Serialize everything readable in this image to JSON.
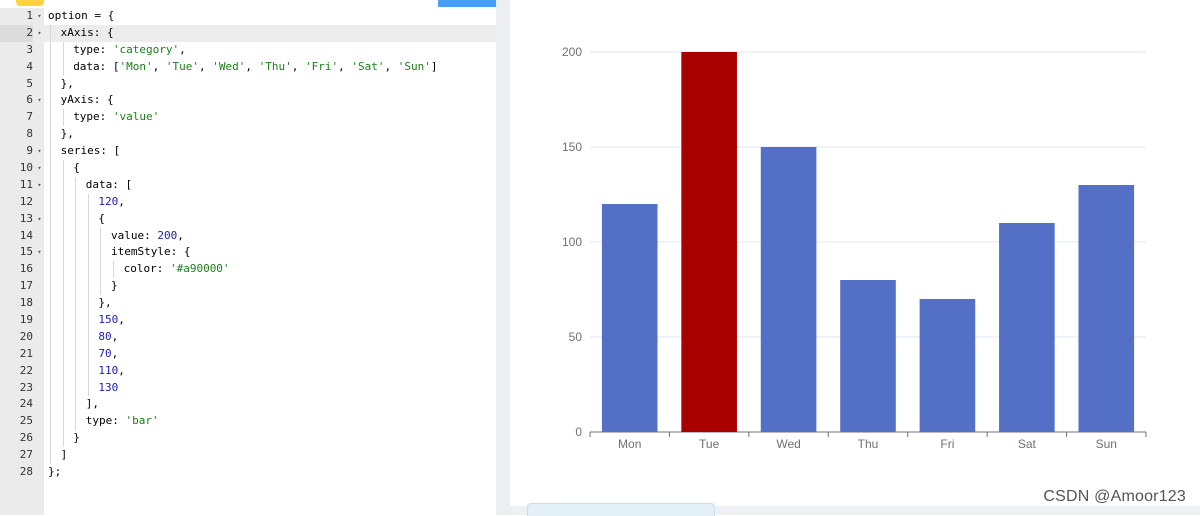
{
  "editor": {
    "active_line": 2,
    "lines": [
      {
        "n": "1",
        "fold": true,
        "indent": 0,
        "tokens": [
          {
            "t": "plain",
            "v": "option = {"
          }
        ]
      },
      {
        "n": "2",
        "fold": true,
        "indent": 1,
        "tokens": [
          {
            "t": "plain",
            "v": "xAxis: {"
          }
        ]
      },
      {
        "n": "3",
        "fold": false,
        "indent": 2,
        "tokens": [
          {
            "t": "plain",
            "v": "type: "
          },
          {
            "t": "str",
            "v": "'category'"
          },
          {
            "t": "plain",
            "v": ","
          }
        ]
      },
      {
        "n": "4",
        "fold": false,
        "indent": 2,
        "tokens": [
          {
            "t": "plain",
            "v": "data: ["
          },
          {
            "t": "str",
            "v": "'Mon'"
          },
          {
            "t": "plain",
            "v": ", "
          },
          {
            "t": "str",
            "v": "'Tue'"
          },
          {
            "t": "plain",
            "v": ", "
          },
          {
            "t": "str",
            "v": "'Wed'"
          },
          {
            "t": "plain",
            "v": ", "
          },
          {
            "t": "str",
            "v": "'Thu'"
          },
          {
            "t": "plain",
            "v": ", "
          },
          {
            "t": "str",
            "v": "'Fri'"
          },
          {
            "t": "plain",
            "v": ", "
          },
          {
            "t": "str",
            "v": "'Sat'"
          },
          {
            "t": "plain",
            "v": ", "
          },
          {
            "t": "str",
            "v": "'Sun'"
          },
          {
            "t": "plain",
            "v": "]"
          }
        ]
      },
      {
        "n": "5",
        "fold": false,
        "indent": 1,
        "tokens": [
          {
            "t": "plain",
            "v": "},"
          }
        ]
      },
      {
        "n": "6",
        "fold": true,
        "indent": 1,
        "tokens": [
          {
            "t": "plain",
            "v": "yAxis: {"
          }
        ]
      },
      {
        "n": "7",
        "fold": false,
        "indent": 2,
        "tokens": [
          {
            "t": "plain",
            "v": "type: "
          },
          {
            "t": "str",
            "v": "'value'"
          }
        ]
      },
      {
        "n": "8",
        "fold": false,
        "indent": 1,
        "tokens": [
          {
            "t": "plain",
            "v": "},"
          }
        ]
      },
      {
        "n": "9",
        "fold": true,
        "indent": 1,
        "tokens": [
          {
            "t": "plain",
            "v": "series: ["
          }
        ]
      },
      {
        "n": "10",
        "fold": true,
        "indent": 2,
        "tokens": [
          {
            "t": "plain",
            "v": "{"
          }
        ]
      },
      {
        "n": "11",
        "fold": true,
        "indent": 3,
        "tokens": [
          {
            "t": "plain",
            "v": "data: ["
          }
        ]
      },
      {
        "n": "12",
        "fold": false,
        "indent": 4,
        "tokens": [
          {
            "t": "num",
            "v": "120"
          },
          {
            "t": "plain",
            "v": ","
          }
        ]
      },
      {
        "n": "13",
        "fold": true,
        "indent": 4,
        "tokens": [
          {
            "t": "plain",
            "v": "{"
          }
        ]
      },
      {
        "n": "14",
        "fold": false,
        "indent": 5,
        "tokens": [
          {
            "t": "plain",
            "v": "value: "
          },
          {
            "t": "num",
            "v": "200"
          },
          {
            "t": "plain",
            "v": ","
          }
        ]
      },
      {
        "n": "15",
        "fold": true,
        "indent": 5,
        "tokens": [
          {
            "t": "plain",
            "v": "itemStyle: {"
          }
        ]
      },
      {
        "n": "16",
        "fold": false,
        "indent": 6,
        "tokens": [
          {
            "t": "plain",
            "v": "color: "
          },
          {
            "t": "str",
            "v": "'#a90000'"
          }
        ]
      },
      {
        "n": "17",
        "fold": false,
        "indent": 5,
        "tokens": [
          {
            "t": "plain",
            "v": "}"
          }
        ]
      },
      {
        "n": "18",
        "fold": false,
        "indent": 4,
        "tokens": [
          {
            "t": "plain",
            "v": "},"
          }
        ]
      },
      {
        "n": "19",
        "fold": false,
        "indent": 4,
        "tokens": [
          {
            "t": "num",
            "v": "150"
          },
          {
            "t": "plain",
            "v": ","
          }
        ]
      },
      {
        "n": "20",
        "fold": false,
        "indent": 4,
        "tokens": [
          {
            "t": "num",
            "v": "80"
          },
          {
            "t": "plain",
            "v": ","
          }
        ]
      },
      {
        "n": "21",
        "fold": false,
        "indent": 4,
        "tokens": [
          {
            "t": "num",
            "v": "70"
          },
          {
            "t": "plain",
            "v": ","
          }
        ]
      },
      {
        "n": "22",
        "fold": false,
        "indent": 4,
        "tokens": [
          {
            "t": "num",
            "v": "110"
          },
          {
            "t": "plain",
            "v": ","
          }
        ]
      },
      {
        "n": "23",
        "fold": false,
        "indent": 4,
        "tokens": [
          {
            "t": "num",
            "v": "130"
          }
        ]
      },
      {
        "n": "24",
        "fold": false,
        "indent": 3,
        "tokens": [
          {
            "t": "plain",
            "v": "],"
          }
        ]
      },
      {
        "n": "25",
        "fold": false,
        "indent": 3,
        "tokens": [
          {
            "t": "plain",
            "v": "type: "
          },
          {
            "t": "str",
            "v": "'bar'"
          }
        ]
      },
      {
        "n": "26",
        "fold": false,
        "indent": 2,
        "tokens": [
          {
            "t": "plain",
            "v": "}"
          }
        ]
      },
      {
        "n": "27",
        "fold": false,
        "indent": 1,
        "tokens": [
          {
            "t": "plain",
            "v": "]"
          }
        ]
      },
      {
        "n": "28",
        "fold": false,
        "indent": 0,
        "tokens": [
          {
            "t": "plain",
            "v": "};"
          }
        ]
      }
    ]
  },
  "chart_data": {
    "type": "bar",
    "categories": [
      "Mon",
      "Tue",
      "Wed",
      "Thu",
      "Fri",
      "Sat",
      "Sun"
    ],
    "values": [
      120,
      200,
      150,
      80,
      70,
      110,
      130
    ],
    "bar_colors": [
      "#5470c6",
      "#a90000",
      "#5470c6",
      "#5470c6",
      "#5470c6",
      "#5470c6",
      "#5470c6"
    ],
    "yticks": [
      0,
      50,
      100,
      150,
      200
    ],
    "ylim": [
      0,
      200
    ],
    "grid": true,
    "title": "",
    "xlabel": "",
    "ylabel": ""
  },
  "watermark": "CSDN @Amoor123"
}
